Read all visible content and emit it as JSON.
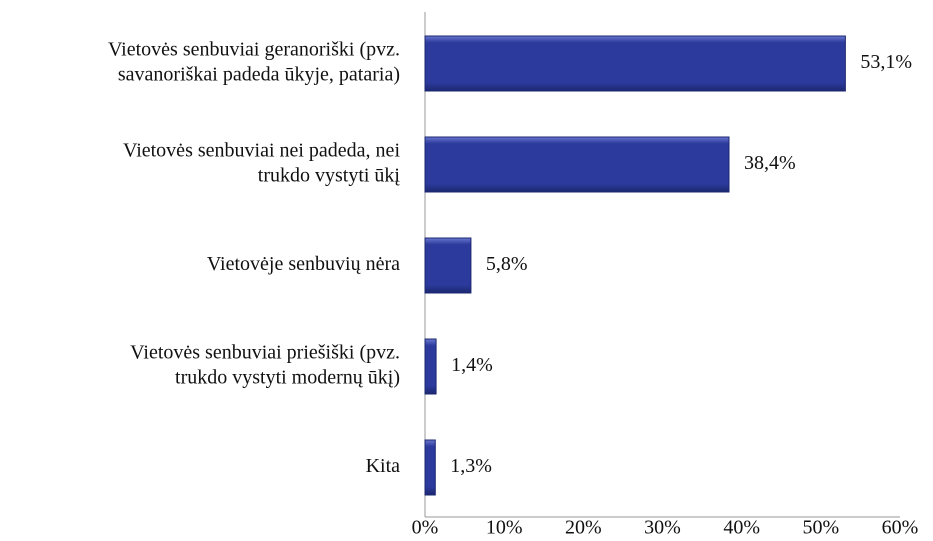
{
  "chart_data": {
    "type": "bar",
    "orientation": "horizontal",
    "categories": [
      [
        "Vietovės senbuviai geranoriški (pvz.",
        "savanoriškai padeda ūkyje, pataria)"
      ],
      [
        "Vietovės senbuviai nei padeda, nei",
        "trukdo vystyti ūkį"
      ],
      [
        "Vietovėje senbuvių nėra"
      ],
      [
        "Vietovės senbuviai priešiški (pvz.",
        "trukdo vystyti modernų ūkį)"
      ],
      [
        "Kita"
      ]
    ],
    "values": [
      53.1,
      38.4,
      5.8,
      1.4,
      1.3
    ],
    "value_labels": [
      "53,1%",
      "38,4%",
      "5,8%",
      "1,4%",
      "1,3%"
    ],
    "color": "#2b3a9c",
    "xlim": [
      0,
      60
    ],
    "xticks": [
      {
        "value": 0,
        "label": "0%"
      },
      {
        "value": 10,
        "label": "10%"
      },
      {
        "value": 20,
        "label": "20%"
      },
      {
        "value": 30,
        "label": "30%"
      },
      {
        "value": 40,
        "label": "40%"
      },
      {
        "value": 50,
        "label": "50%"
      },
      {
        "value": 60,
        "label": "60%"
      }
    ],
    "grid": false
  }
}
